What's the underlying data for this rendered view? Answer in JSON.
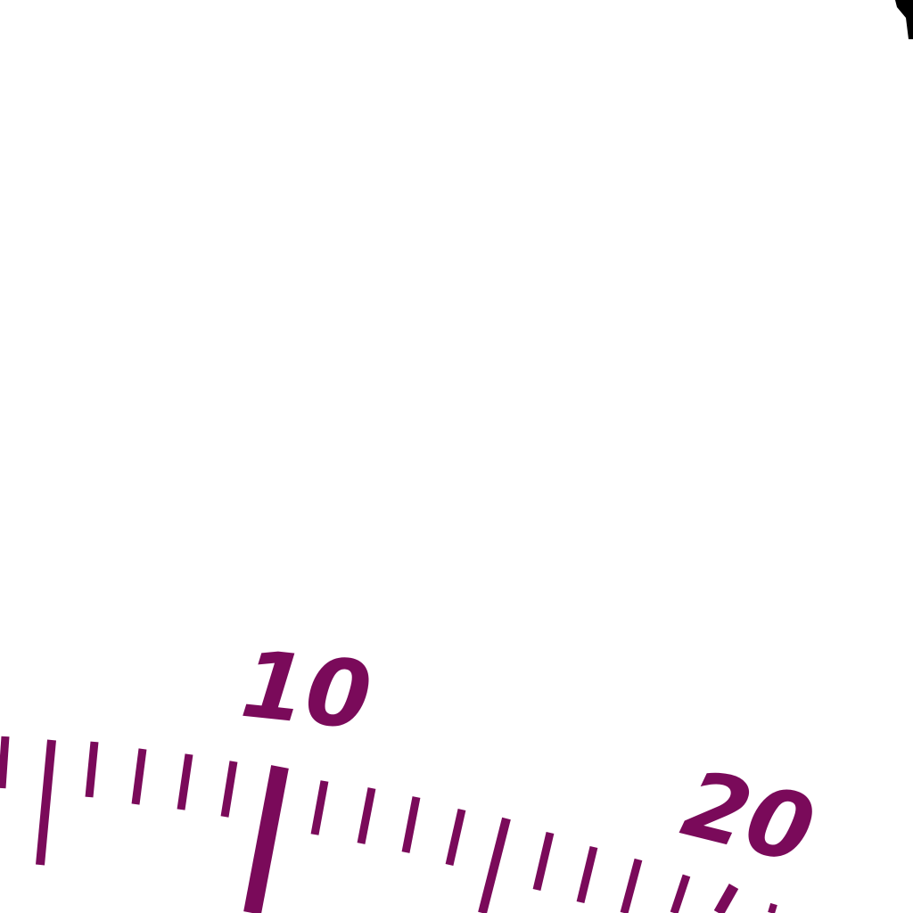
{
  "dial": {
    "scale_color": "#7a0a5a",
    "needle_color": "#000000",
    "background_color": "#ffffff",
    "labels": [
      {
        "value": 10,
        "text": "10"
      },
      {
        "value": 20,
        "text": "20"
      }
    ]
  }
}
